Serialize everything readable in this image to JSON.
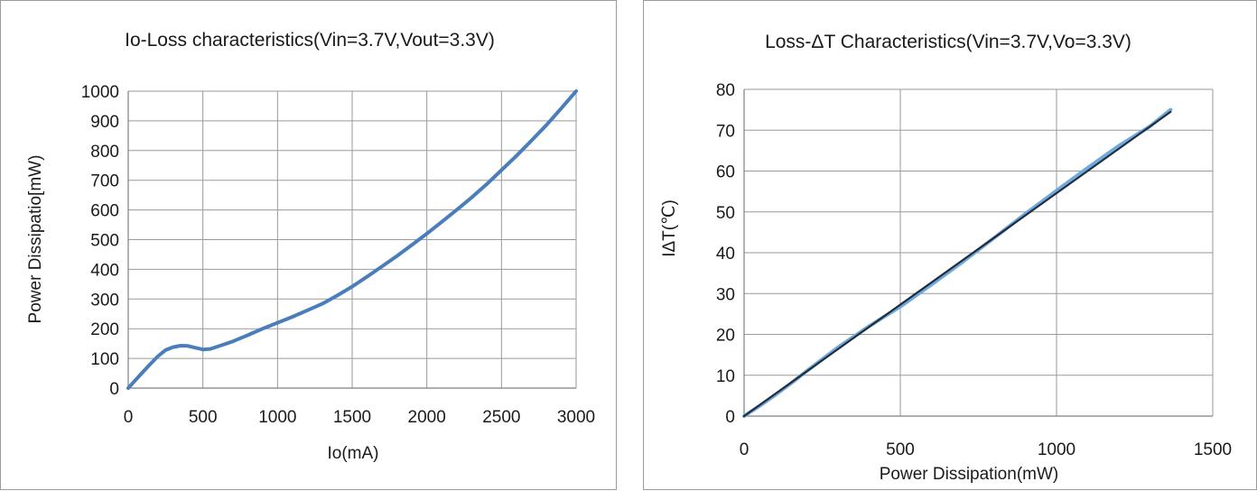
{
  "chart_data": [
    {
      "type": "line",
      "title": "Io-Loss characteristics(Vin=3.7V,Vout=3.3V)",
      "xlabel": "Io(mA)",
      "ylabel": "Power Dissipatio[mW)",
      "xlim": [
        0,
        3000
      ],
      "ylim": [
        0,
        1000
      ],
      "xticks": [
        "0",
        "500",
        "1000",
        "1500",
        "2000",
        "2500",
        "3000"
      ],
      "yticks": [
        "0",
        "100",
        "200",
        "300",
        "400",
        "500",
        "600",
        "700",
        "800",
        "900",
        "1000"
      ],
      "grid": true,
      "color": "#4a7ebb",
      "series": [
        {
          "x": [
            0,
            50,
            100,
            150,
            200,
            250,
            300,
            350,
            400,
            450,
            500,
            550,
            600,
            700,
            800,
            900,
            1000,
            1100,
            1200,
            1300,
            1400,
            1500,
            1600,
            1700,
            1800,
            1900,
            2000,
            2100,
            2200,
            2300,
            2400,
            2500,
            2600,
            2700,
            2800,
            2900,
            3000
          ],
          "y": [
            0,
            28,
            55,
            82,
            108,
            128,
            138,
            143,
            142,
            136,
            130,
            132,
            140,
            157,
            178,
            200,
            220,
            240,
            262,
            284,
            312,
            342,
            375,
            410,
            445,
            482,
            520,
            560,
            600,
            642,
            686,
            734,
            782,
            833,
            885,
            942,
            1000
          ]
        }
      ]
    },
    {
      "type": "line",
      "title": "Loss-ΔT Characteristics(Vin=3.7V,Vo=3.3V)",
      "xlabel": "Power Dissipation(mW)",
      "ylabel": "IΔT(℃)",
      "xlim": [
        0,
        1500
      ],
      "ylim": [
        0,
        80
      ],
      "xticks": [
        "0",
        "500",
        "1000",
        "1500"
      ],
      "yticks": [
        "0",
        "10",
        "20",
        "30",
        "40",
        "50",
        "60",
        "70",
        "80"
      ],
      "grid": true,
      "series": [
        {
          "color": "#6fa8dc",
          "x": [
            0,
            50,
            100,
            150,
            200,
            300,
            400,
            500,
            600,
            700,
            800,
            900,
            1000,
            1100,
            1200,
            1300,
            1365
          ],
          "y": [
            0,
            2.5,
            5.2,
            8.0,
            11.0,
            16.8,
            22.0,
            26.8,
            32.2,
            37.8,
            43.6,
            49.5,
            55.2,
            60.8,
            66.2,
            71.0,
            75.0
          ]
        },
        {
          "color": "#1f2d3d",
          "x": [
            0,
            1365
          ],
          "y": [
            0,
            74.5
          ]
        }
      ]
    }
  ]
}
